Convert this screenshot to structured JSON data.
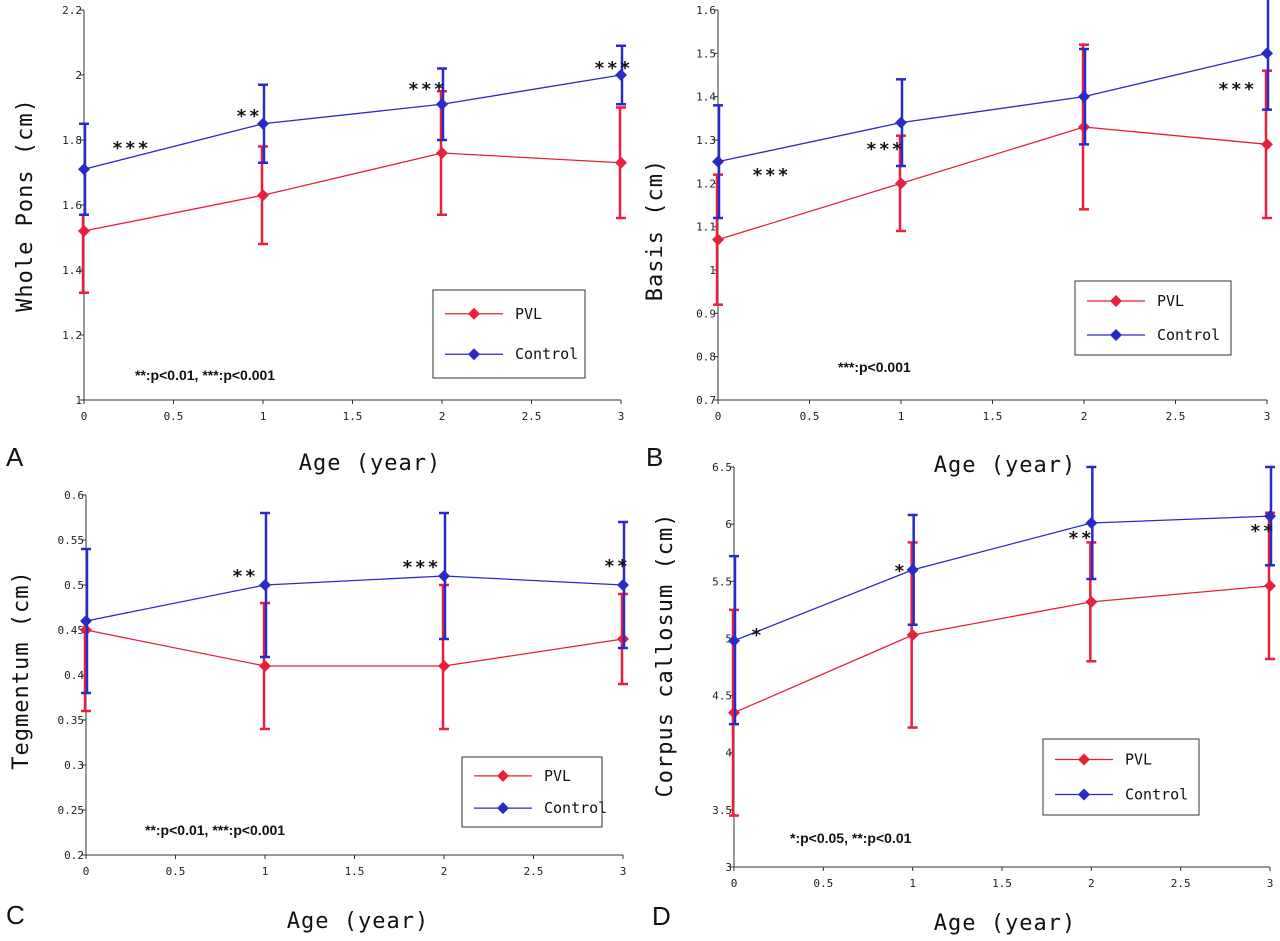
{
  "colors": {
    "pvl": "#e8203c",
    "control": "#2a2ac8",
    "axis": "#333333"
  },
  "chart_data": [
    {
      "type": "line",
      "panel": "A",
      "xlabel": "Age (year)",
      "ylabel": "Whole Pons (cm)",
      "xlim": [
        0,
        3
      ],
      "ylim": [
        1,
        2.2
      ],
      "xticks": [
        "0",
        "0.5",
        "1",
        "1.5",
        "2",
        "2.5",
        "3"
      ],
      "yticks": [
        "1",
        "1.2",
        "1.4",
        "1.6",
        "1.8",
        "2",
        "2.2"
      ],
      "x": [
        0,
        1,
        2,
        3
      ],
      "series": [
        {
          "name": "PVL",
          "values": [
            1.52,
            1.63,
            1.76,
            1.73
          ],
          "lower": [
            1.33,
            1.48,
            1.57,
            1.56
          ],
          "upper": [
            1.57,
            1.78,
            1.95,
            1.9
          ]
        },
        {
          "name": "Control",
          "values": [
            1.71,
            1.85,
            1.91,
            2.0
          ],
          "lower": [
            1.57,
            1.73,
            1.8,
            1.91
          ],
          "upper": [
            1.85,
            1.97,
            2.02,
            2.09
          ]
        }
      ],
      "stars": [
        "***",
        "**",
        "***",
        "***"
      ],
      "legend": [
        "PVL",
        "Control"
      ],
      "note": "**:p<0.01,  ***:p<0.001"
    },
    {
      "type": "line",
      "panel": "B",
      "xlabel": "Age (year)",
      "ylabel": "Basis (cm)",
      "xlim": [
        0,
        3
      ],
      "ylim": [
        0.7,
        1.6
      ],
      "xticks": [
        "0",
        "0.5",
        "1",
        "1.5",
        "2",
        "2.5",
        "3"
      ],
      "yticks": [
        "0.7",
        "0.8",
        "0.9",
        "1",
        "1.1",
        "1.2",
        "1.3",
        "1.4",
        "1.5",
        "1.6"
      ],
      "x": [
        0,
        1,
        2,
        3
      ],
      "series": [
        {
          "name": "PVL",
          "values": [
            1.07,
            1.2,
            1.33,
            1.29
          ],
          "lower": [
            0.92,
            1.09,
            1.14,
            1.12
          ],
          "upper": [
            1.22,
            1.31,
            1.52,
            1.46
          ]
        },
        {
          "name": "Control",
          "values": [
            1.25,
            1.34,
            1.4,
            1.5
          ],
          "lower": [
            1.12,
            1.24,
            1.29,
            1.37
          ],
          "upper": [
            1.38,
            1.44,
            1.51,
            1.63
          ]
        }
      ],
      "stars": [
        "***",
        "***",
        "",
        "***"
      ],
      "legend": [
        "PVL",
        "Control"
      ],
      "note": "***:p<0.001"
    },
    {
      "type": "line",
      "panel": "C",
      "xlabel": "Age (year)",
      "ylabel": "Tegmentum (cm)",
      "xlim": [
        0,
        3
      ],
      "ylim": [
        0.2,
        0.6
      ],
      "xticks": [
        "0",
        "0.5",
        "1",
        "1.5",
        "2",
        "2.5",
        "3"
      ],
      "yticks": [
        "0.2",
        "0.25",
        "0.3",
        "0.35",
        "0.4",
        "0.45",
        "0.5",
        "0.55",
        "0.6"
      ],
      "x": [
        0,
        1,
        2,
        3
      ],
      "series": [
        {
          "name": "PVL",
          "values": [
            0.45,
            0.41,
            0.41,
            0.44
          ],
          "lower": [
            0.36,
            0.34,
            0.34,
            0.39
          ],
          "upper": [
            0.46,
            0.48,
            0.5,
            0.49
          ]
        },
        {
          "name": "Control",
          "values": [
            0.46,
            0.5,
            0.51,
            0.5
          ],
          "lower": [
            0.38,
            0.42,
            0.44,
            0.43
          ],
          "upper": [
            0.54,
            0.58,
            0.58,
            0.57
          ]
        }
      ],
      "stars": [
        "",
        "**",
        "***",
        "**"
      ],
      "legend": [
        "PVL",
        "Control"
      ],
      "note": "**:p<0.01,  ***:p<0.001"
    },
    {
      "type": "line",
      "panel": "D",
      "xlabel": "Age (year)",
      "ylabel": "Corpus callosum (cm)",
      "xlim": [
        0,
        3
      ],
      "ylim": [
        3,
        6.5
      ],
      "xticks": [
        "0",
        "0.5",
        "1",
        "1.5",
        "2",
        "2.5",
        "3"
      ],
      "yticks": [
        "3",
        "3.5",
        "4",
        "4.5",
        "5",
        "5.5",
        "6",
        "6.5"
      ],
      "x": [
        0,
        1,
        2,
        3
      ],
      "series": [
        {
          "name": "PVL",
          "values": [
            4.35,
            5.03,
            5.32,
            5.46
          ],
          "lower": [
            3.45,
            4.22,
            4.8,
            4.82
          ],
          "upper": [
            5.25,
            5.84,
            5.84,
            6.1
          ]
        },
        {
          "name": "Control",
          "values": [
            4.98,
            5.6,
            6.01,
            6.07
          ],
          "lower": [
            4.25,
            5.12,
            5.52,
            5.64
          ],
          "upper": [
            5.72,
            6.08,
            6.5,
            6.5
          ]
        }
      ],
      "stars": [
        "*",
        "*",
        "**",
        "**"
      ],
      "legend": [
        "PVL",
        "Control"
      ],
      "note": "*:p<0.05,  **:p<0.01"
    }
  ]
}
